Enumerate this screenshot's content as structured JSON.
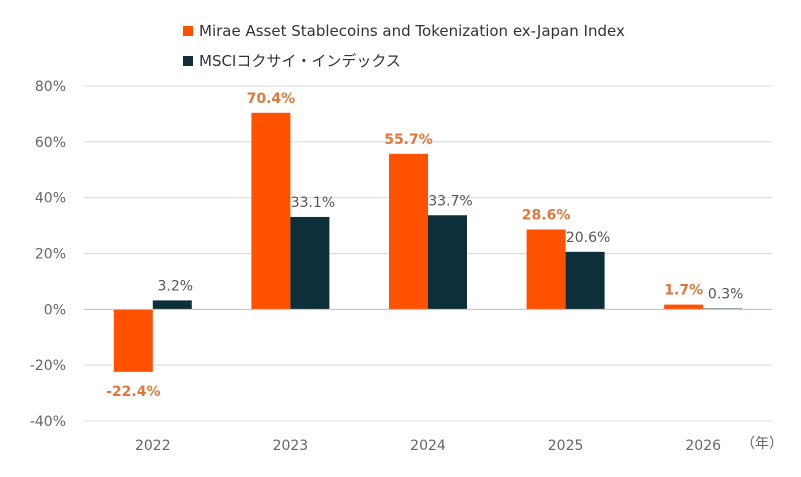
{
  "colors": {
    "series_a": "#FF5100",
    "series_a_label": "#E2773A",
    "series_b": "#0D2F3A",
    "grid": "#D9D9D9",
    "axis": "#BFBFBF"
  },
  "chart_data": {
    "type": "bar",
    "categories": [
      "2022",
      "2023",
      "2024",
      "2025",
      "2026"
    ],
    "series": [
      {
        "name": "Mirae Asset Stablecoins and Tokenization ex-Japan Index",
        "values": [
          -22.4,
          70.4,
          55.7,
          28.6,
          1.7
        ],
        "labels": [
          "-22.4%",
          "70.4%",
          "55.7%",
          "28.6%",
          "1.7%"
        ]
      },
      {
        "name": "MSCIコクサイ・インデックス",
        "values": [
          3.2,
          33.1,
          33.7,
          20.6,
          0.3
        ],
        "labels": [
          "3.2%",
          "33.1%",
          "33.7%",
          "20.6%",
          "0.3%"
        ]
      }
    ],
    "yticks": [
      80,
      60,
      40,
      20,
      0,
      -20,
      -40
    ],
    "ytick_labels": [
      "80%",
      "60%",
      "40%",
      "20%",
      "0%",
      "-20%",
      "-40%"
    ],
    "ylim": [
      -40,
      80
    ],
    "x_unit_label": "（年）",
    "legend_position": "top",
    "grid": true
  }
}
